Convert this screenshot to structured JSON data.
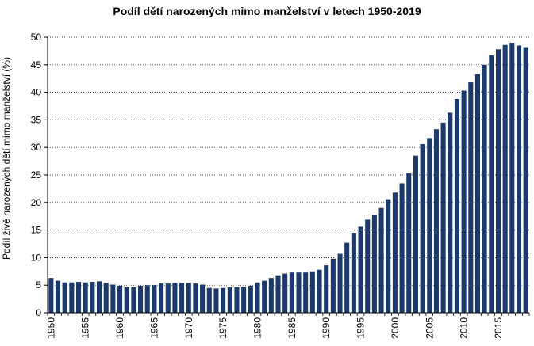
{
  "colors": {
    "bar": "#1b3a6b",
    "grid": "#000000",
    "axis": "#000000"
  },
  "chart_data": {
    "type": "bar",
    "title": "Podíl dětí narozených mimo manželství v letech 1950-2019",
    "xlabel": "",
    "ylabel": "Podíl živě narozených dětí mimo manželství (%)",
    "ylim": [
      0,
      50
    ],
    "yticks": [
      0,
      5,
      10,
      15,
      20,
      25,
      30,
      35,
      40,
      45,
      50
    ],
    "xtick_labels": [
      "1950",
      "1955",
      "1960",
      "1965",
      "1970",
      "1975",
      "1980",
      "1985",
      "1990",
      "1995",
      "2000",
      "2005",
      "2010",
      "2015"
    ],
    "grid": "horizontal-dotted",
    "categories": [
      "1950",
      "1951",
      "1952",
      "1953",
      "1954",
      "1955",
      "1956",
      "1957",
      "1958",
      "1959",
      "1960",
      "1961",
      "1962",
      "1963",
      "1964",
      "1965",
      "1966",
      "1967",
      "1968",
      "1969",
      "1970",
      "1971",
      "1972",
      "1973",
      "1974",
      "1975",
      "1976",
      "1977",
      "1978",
      "1979",
      "1980",
      "1981",
      "1982",
      "1983",
      "1984",
      "1985",
      "1986",
      "1987",
      "1988",
      "1989",
      "1990",
      "1991",
      "1992",
      "1993",
      "1994",
      "1995",
      "1996",
      "1997",
      "1998",
      "1999",
      "2000",
      "2001",
      "2002",
      "2003",
      "2004",
      "2005",
      "2006",
      "2007",
      "2008",
      "2009",
      "2010",
      "2011",
      "2012",
      "2013",
      "2014",
      "2015",
      "2016",
      "2017",
      "2018",
      "2019"
    ],
    "values": [
      6.3,
      5.8,
      5.5,
      5.5,
      5.6,
      5.5,
      5.6,
      5.7,
      5.4,
      5.1,
      4.9,
      4.6,
      4.6,
      4.9,
      5.0,
      5.0,
      5.3,
      5.3,
      5.4,
      5.4,
      5.4,
      5.3,
      5.1,
      4.5,
      4.4,
      4.5,
      4.6,
      4.6,
      4.7,
      4.9,
      5.5,
      5.8,
      6.3,
      6.8,
      7.1,
      7.3,
      7.3,
      7.3,
      7.5,
      7.8,
      8.6,
      9.8,
      10.7,
      12.7,
      14.5,
      15.6,
      16.9,
      17.8,
      19.0,
      20.6,
      21.8,
      23.5,
      25.3,
      28.5,
      30.6,
      31.7,
      33.3,
      34.5,
      36.3,
      38.8,
      40.3,
      41.8,
      43.3,
      45.0,
      46.7,
      47.8,
      48.6,
      49.0,
      48.5,
      48.2
    ]
  }
}
